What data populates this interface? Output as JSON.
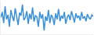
{
  "chart_data": {
    "type": "line",
    "color": "#3a8fd9",
    "tick_labels": false,
    "grid": false,
    "x": [
      0,
      1,
      2,
      3,
      4,
      5,
      6,
      7,
      8,
      9,
      10,
      11,
      12,
      13,
      14,
      15,
      16,
      17,
      18,
      19,
      20,
      21,
      22,
      23,
      24,
      25,
      26,
      27,
      28,
      29,
      30,
      31,
      32,
      33,
      34,
      35,
      36,
      37,
      38,
      39,
      40,
      41,
      42,
      43,
      44,
      45,
      46,
      47,
      48,
      49,
      50,
      51,
      52,
      53,
      54,
      55,
      56,
      57,
      58,
      59,
      60,
      61,
      62,
      63,
      64
    ],
    "values": [
      55,
      70,
      40,
      85,
      50,
      62,
      30,
      75,
      58,
      45,
      80,
      52,
      35,
      68,
      60,
      90,
      48,
      55,
      72,
      38,
      65,
      50,
      82,
      44,
      60,
      57,
      30,
      70,
      52,
      64,
      20,
      58,
      46,
      75,
      40,
      62,
      55,
      35,
      66,
      50,
      78,
      45,
      60,
      52,
      70,
      38,
      55,
      63,
      48,
      72,
      58,
      42,
      66,
      54,
      60,
      47,
      70,
      52,
      58,
      45,
      64,
      55,
      50,
      62,
      58
    ],
    "xlim": [
      0,
      64
    ],
    "ylim": [
      10,
      100
    ],
    "xticks": [],
    "yticks": []
  }
}
